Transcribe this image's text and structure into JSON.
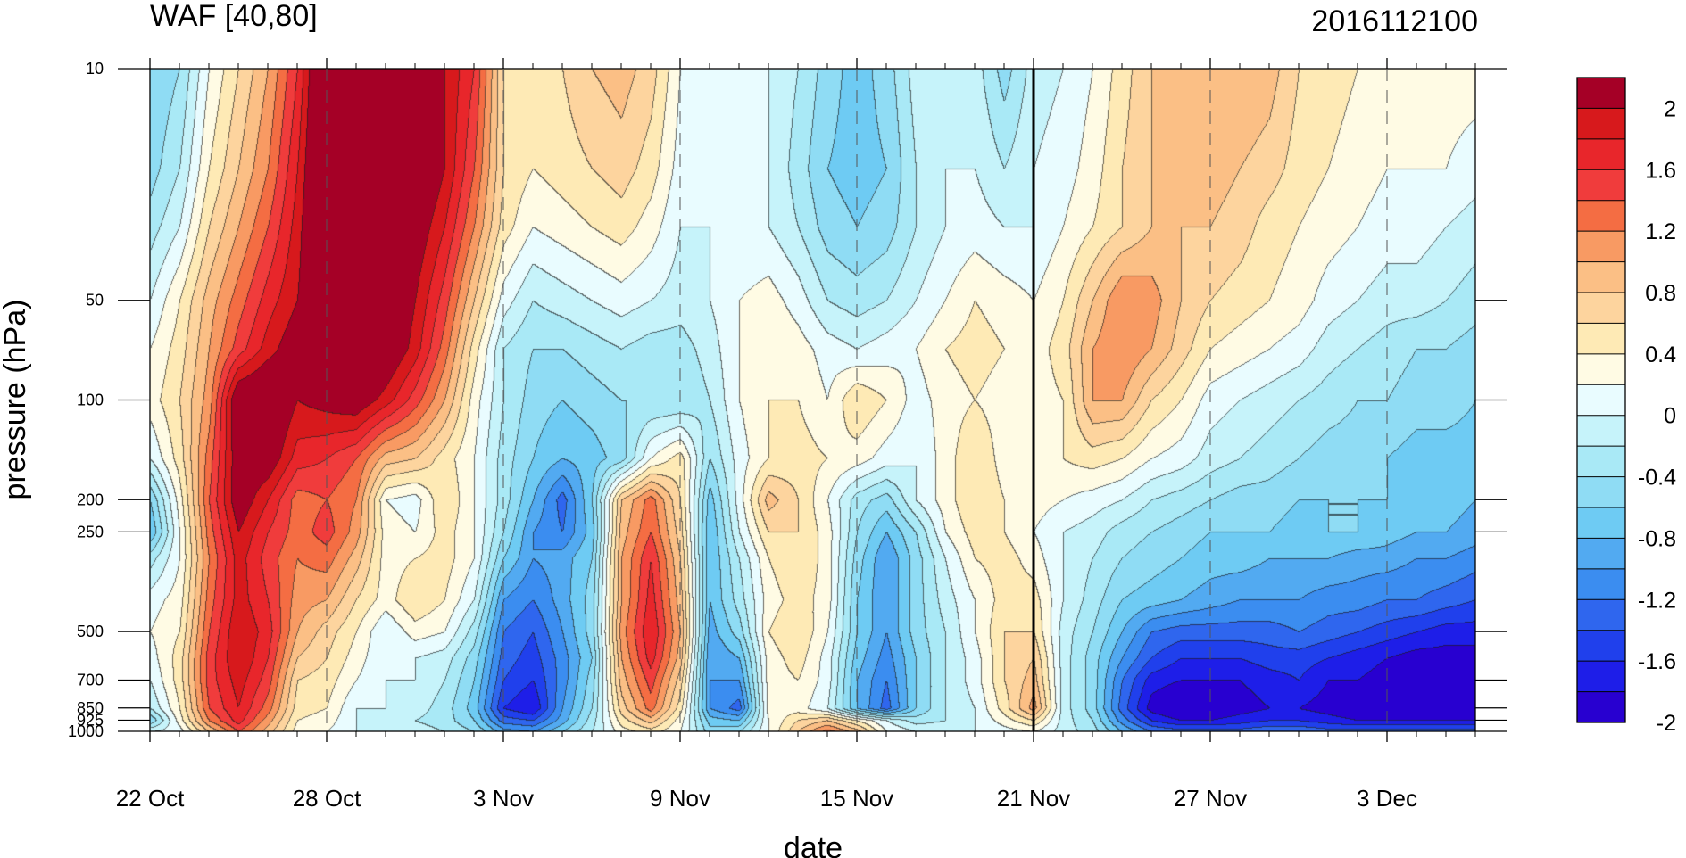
{
  "chart_data": {
    "type": "heatmap",
    "title_left": "WAF [40,80]",
    "title_right": "2016112100",
    "xlabel": "date",
    "ylabel": "pressure (hPa)",
    "x_tick_labels": [
      "22 Oct",
      "28 Oct",
      "3 Nov",
      "9 Nov",
      "15 Nov",
      "21 Nov",
      "27 Nov",
      "3 Dec"
    ],
    "x_ticks_day_offset": [
      0,
      6,
      12,
      18,
      24,
      30,
      36,
      42
    ],
    "x_range_days": [
      0,
      45
    ],
    "y_scale": "log",
    "y_reversed": true,
    "y_tick_labels": [
      "10",
      "50",
      "100",
      "200",
      "250",
      "500",
      "700",
      "850",
      "925",
      "1000"
    ],
    "y_ticks": [
      10,
      50,
      100,
      200,
      250,
      500,
      700,
      850,
      925,
      1000
    ],
    "y_range": [
      10,
      1000
    ],
    "vertical_marker": "21 Nov",
    "colorbar": {
      "labels": [
        "2",
        "1.6",
        "1.2",
        "0.8",
        "0.4",
        "0",
        "-0.4",
        "-0.8",
        "-1.2",
        "-1.6",
        "-2"
      ],
      "levels": [
        2.2,
        2.0,
        1.8,
        1.6,
        1.4,
        1.2,
        1.0,
        0.8,
        0.6,
        0.4,
        0.2,
        0.0,
        -0.2,
        -0.4,
        -0.6,
        -0.8,
        -1.0,
        -1.2,
        -1.4,
        -1.6,
        -1.8,
        -2.0,
        -2.2
      ],
      "colors": [
        "#a50026",
        "#d7191c",
        "#e8262b",
        "#f03c3c",
        "#f46d43",
        "#f89a63",
        "#fbbf85",
        "#fdd49e",
        "#feeab5",
        "#fffbe4",
        "#e9fcff",
        "#c6f3fa",
        "#a9e9f6",
        "#8fdcf4",
        "#6ecbf3",
        "#52aaf1",
        "#3b8df0",
        "#2f66ee",
        "#2040ec",
        "#1e1ee8",
        "#2800d0"
      ]
    },
    "grid": {
      "times": [
        0,
        1,
        2,
        3,
        4,
        5,
        6,
        7,
        8,
        9,
        10,
        11,
        12,
        13,
        14,
        15,
        16,
        17,
        18,
        19,
        20,
        21,
        22,
        23,
        24,
        25,
        26,
        27,
        28,
        29,
        30,
        31,
        32,
        33,
        34,
        35,
        36,
        37,
        38,
        39,
        40,
        41,
        42,
        43,
        44,
        45
      ],
      "levels_hPa": [
        10,
        20,
        30,
        50,
        70,
        100,
        150,
        200,
        250,
        300,
        400,
        500,
        600,
        700,
        850,
        925,
        1000
      ],
      "values_comment_removed": true,
      "values": [
        [
          -0.6,
          -0.4,
          0.2,
          0.6,
          1.0,
          1.6,
          2.6,
          2.8,
          2.6,
          2.4,
          2.0,
          1.6,
          0.6,
          0.4,
          0.6,
          0.8,
          0.9,
          0.7,
          0.2,
          0.0,
          0.0,
          0.0,
          -0.2,
          -0.5,
          -0.7,
          -0.5,
          -0.1,
          0.0,
          -0.1,
          -0.5,
          -0.1,
          0.0,
          0.2,
          0.5,
          0.8,
          0.9,
          1.0,
          1.0,
          0.9,
          0.6,
          0.5,
          0.4,
          0.3,
          0.3,
          0.3,
          0.3
        ],
        [
          -0.5,
          -0.2,
          0.4,
          0.8,
          1.2,
          1.8,
          2.6,
          2.8,
          2.6,
          2.4,
          2.0,
          1.4,
          0.6,
          0.4,
          0.5,
          0.6,
          0.7,
          0.5,
          0.1,
          0.0,
          0.0,
          0.0,
          -0.3,
          -0.6,
          -0.7,
          -0.6,
          -0.2,
          0.0,
          0.0,
          -0.2,
          0.0,
          0.1,
          0.3,
          0.6,
          0.8,
          0.9,
          0.9,
          0.8,
          0.7,
          0.5,
          0.4,
          0.3,
          0.2,
          0.2,
          0.2,
          0.1
        ],
        [
          -0.3,
          0.0,
          0.6,
          1.0,
          1.4,
          1.9,
          2.6,
          2.8,
          2.5,
          2.2,
          1.8,
          1.2,
          0.5,
          0.2,
          0.3,
          0.4,
          0.5,
          0.3,
          0.0,
          0.0,
          0.0,
          0.0,
          -0.2,
          -0.5,
          -0.6,
          -0.5,
          -0.2,
          0.0,
          0.1,
          0.0,
          0.0,
          0.2,
          0.4,
          0.6,
          0.8,
          0.8,
          0.8,
          0.7,
          0.5,
          0.4,
          0.3,
          0.2,
          0.1,
          0.1,
          0.0,
          -0.1
        ],
        [
          0.0,
          0.4,
          0.9,
          1.3,
          1.7,
          2.0,
          2.5,
          2.7,
          2.4,
          2.0,
          1.5,
          0.8,
          0.1,
          -0.2,
          -0.1,
          0.0,
          0.1,
          0.0,
          -0.1,
          0.0,
          0.2,
          0.3,
          0.1,
          -0.2,
          -0.3,
          -0.2,
          0.0,
          0.2,
          0.4,
          0.3,
          0.2,
          0.4,
          0.8,
          1.2,
          1.1,
          0.8,
          0.6,
          0.5,
          0.4,
          0.3,
          0.1,
          0.0,
          -0.1,
          -0.1,
          -0.2,
          -0.3
        ],
        [
          0.2,
          0.5,
          1.0,
          1.5,
          1.9,
          2.2,
          2.4,
          2.6,
          2.3,
          1.9,
          1.3,
          0.5,
          -0.2,
          -0.4,
          -0.4,
          -0.3,
          -0.2,
          -0.3,
          -0.3,
          -0.1,
          0.2,
          0.4,
          0.3,
          0.1,
          0.0,
          0.1,
          0.2,
          0.4,
          0.5,
          0.4,
          0.3,
          0.5,
          1.0,
          1.2,
          1.0,
          0.7,
          0.4,
          0.3,
          0.2,
          0.1,
          -0.1,
          -0.2,
          -0.3,
          -0.4,
          -0.4,
          -0.5
        ],
        [
          0.3,
          0.6,
          1.1,
          2.3,
          2.4,
          2.0,
          2.1,
          2.2,
          1.9,
          1.5,
          1.0,
          0.3,
          -0.2,
          -0.5,
          -0.6,
          -0.5,
          -0.4,
          -0.4,
          -0.4,
          -0.2,
          0.2,
          0.4,
          0.4,
          0.2,
          0.6,
          0.4,
          0.1,
          0.3,
          0.4,
          0.3,
          0.3,
          0.4,
          1.0,
          1.0,
          0.6,
          0.4,
          0.1,
          0.0,
          -0.1,
          -0.2,
          -0.3,
          -0.4,
          -0.4,
          -0.5,
          -0.5,
          -0.6
        ],
        [
          0.0,
          0.5,
          1.3,
          2.2,
          2.2,
          1.7,
          1.6,
          1.4,
          0.9,
          0.8,
          0.5,
          0.2,
          -0.3,
          -0.6,
          -0.8,
          -0.7,
          -0.5,
          0.2,
          0.5,
          -0.4,
          0.1,
          0.4,
          0.5,
          0.4,
          0.3,
          0.1,
          0.0,
          0.3,
          0.6,
          0.3,
          0.4,
          0.4,
          0.5,
          0.4,
          0.2,
          0.1,
          -0.1,
          -0.2,
          -0.3,
          -0.4,
          -0.5,
          -0.5,
          -0.6,
          -0.7,
          -0.7,
          -0.7
        ],
        [
          -0.6,
          0.3,
          1.4,
          2.2,
          1.8,
          1.3,
          1.4,
          1.2,
          0.2,
          0.1,
          0.6,
          0.2,
          -0.3,
          -0.8,
          -1.3,
          -0.6,
          0.8,
          1.3,
          0.6,
          -0.7,
          0.1,
          0.9,
          0.6,
          0.2,
          -0.3,
          -0.5,
          0.0,
          0.3,
          0.6,
          0.4,
          0.3,
          0.2,
          0.1,
          0.0,
          -0.2,
          -0.3,
          -0.4,
          -0.5,
          -0.5,
          -0.6,
          -0.6,
          -0.6,
          -0.6,
          -0.7,
          -0.7,
          -0.8
        ],
        [
          -0.8,
          0.2,
          1.3,
          2.0,
          1.6,
          1.3,
          1.5,
          1.1,
          0.3,
          0.2,
          0.5,
          0.2,
          -0.4,
          -1.0,
          -1.2,
          -0.7,
          0.9,
          1.4,
          0.7,
          -0.8,
          0.0,
          0.6,
          0.6,
          0.3,
          -0.4,
          -0.8,
          -0.4,
          0.2,
          0.5,
          0.4,
          0.2,
          0.0,
          -0.1,
          -0.3,
          -0.4,
          -0.5,
          -0.6,
          -0.6,
          -0.6,
          -0.7,
          -0.6,
          -0.6,
          -0.7,
          -0.8,
          -0.8,
          -0.9
        ],
        [
          -0.3,
          0.2,
          1.2,
          1.9,
          1.5,
          1.2,
          1.3,
          0.9,
          0.3,
          0.4,
          0.5,
          0.2,
          -0.6,
          -1.0,
          -0.9,
          -0.6,
          1.0,
          1.6,
          0.8,
          -0.8,
          -0.2,
          0.4,
          0.6,
          0.3,
          -0.5,
          -1.0,
          -0.5,
          0.0,
          0.4,
          0.5,
          0.3,
          0.0,
          -0.2,
          -0.4,
          -0.5,
          -0.6,
          -0.7,
          -0.7,
          -0.8,
          -0.8,
          -0.8,
          -0.9,
          -0.9,
          -1.0,
          -1.0,
          -1.1
        ],
        [
          0.1,
          0.3,
          1.3,
          1.9,
          1.6,
          1.1,
          1.0,
          0.6,
          0.3,
          0.6,
          0.4,
          0.0,
          -1.0,
          -1.2,
          -0.9,
          -0.5,
          1.0,
          1.7,
          0.9,
          -0.8,
          -0.3,
          0.3,
          0.5,
          0.3,
          -0.6,
          -1.0,
          -0.5,
          -0.1,
          0.2,
          0.5,
          0.5,
          0.0,
          -0.3,
          -0.6,
          -0.7,
          -0.8,
          -0.9,
          -1.0,
          -1.0,
          -1.0,
          -1.1,
          -1.1,
          -1.2,
          -1.2,
          -1.3,
          -1.4
        ],
        [
          0.2,
          0.4,
          1.4,
          2.0,
          1.7,
          1.0,
          0.7,
          0.4,
          0.0,
          0.3,
          0.2,
          -0.3,
          -1.2,
          -1.4,
          -1.0,
          -0.5,
          1.1,
          1.8,
          1.0,
          -0.9,
          -0.5,
          0.4,
          0.6,
          0.2,
          -0.6,
          -1.0,
          -0.5,
          -0.2,
          0.2,
          0.6,
          0.6,
          -0.1,
          -0.4,
          -0.8,
          -1.2,
          -1.3,
          -1.3,
          -1.3,
          -1.3,
          -1.2,
          -1.3,
          -1.4,
          -1.5,
          -1.6,
          -1.7,
          -1.7
        ],
        [
          0.1,
          0.5,
          1.5,
          2.0,
          1.6,
          0.8,
          0.6,
          0.3,
          0.0,
          0.0,
          -0.1,
          -0.5,
          -1.3,
          -1.5,
          -1.1,
          -0.6,
          1.0,
          1.7,
          0.9,
          -1.0,
          -0.8,
          0.3,
          0.5,
          0.1,
          -0.7,
          -1.1,
          -0.6,
          -0.2,
          0.1,
          0.6,
          0.8,
          -0.1,
          -0.5,
          -1.0,
          -1.4,
          -1.6,
          -1.6,
          -1.6,
          -1.5,
          -1.5,
          -1.6,
          -1.7,
          -1.8,
          -1.9,
          -1.9,
          -1.9
        ],
        [
          0.0,
          0.5,
          1.5,
          1.9,
          1.5,
          0.6,
          0.5,
          0.2,
          0.0,
          0.0,
          -0.2,
          -0.6,
          -1.4,
          -1.6,
          -1.1,
          -0.5,
          0.9,
          1.5,
          0.7,
          -1.0,
          -1.0,
          0.3,
          0.4,
          0.1,
          -0.8,
          -1.2,
          -0.6,
          -0.2,
          0.1,
          0.6,
          0.9,
          -0.1,
          -0.5,
          -1.2,
          -1.7,
          -1.8,
          -1.8,
          -1.8,
          -1.7,
          -1.6,
          -1.8,
          -1.8,
          -1.9,
          -2.0,
          -2.0,
          -2.0
        ],
        [
          -0.2,
          0.4,
          1.4,
          1.8,
          1.3,
          0.5,
          0.4,
          0.0,
          0.0,
          -0.1,
          -0.3,
          -0.7,
          -1.6,
          -1.8,
          -1.0,
          -0.4,
          0.7,
          1.3,
          0.5,
          -1.0,
          -1.3,
          0.3,
          0.3,
          0.0,
          -0.8,
          -1.3,
          -0.6,
          -0.2,
          0.0,
          0.5,
          1.1,
          -0.1,
          -0.5,
          -1.3,
          -1.9,
          -2.1,
          -2.0,
          -1.9,
          -1.8,
          -1.8,
          -1.9,
          -2.0,
          -2.1,
          -2.1,
          -2.1,
          -2.1
        ],
        [
          -0.6,
          0.3,
          1.2,
          1.7,
          1.1,
          0.4,
          0.3,
          0.0,
          -0.1,
          -0.2,
          -0.3,
          -0.6,
          -1.3,
          -1.4,
          -0.9,
          -0.3,
          0.5,
          0.9,
          0.3,
          -0.7,
          -0.8,
          0.2,
          0.6,
          0.8,
          0.4,
          0.0,
          -0.3,
          -0.2,
          0.0,
          0.3,
          0.6,
          -0.1,
          -0.4,
          -1.1,
          -1.6,
          -1.8,
          -1.8,
          -1.7,
          -1.6,
          -1.6,
          -1.7,
          -1.8,
          -1.8,
          -1.8,
          -1.8,
          -1.8
        ],
        [
          0.0,
          0.1,
          0.8,
          1.4,
          0.9,
          0.3,
          0.2,
          0.0,
          -0.1,
          -0.1,
          -0.2,
          -0.4,
          -0.9,
          -1.0,
          -0.6,
          -0.2,
          0.3,
          0.5,
          0.2,
          -0.5,
          -0.4,
          0.2,
          0.8,
          1.3,
          0.9,
          0.2,
          0.0,
          0.0,
          0.0,
          0.1,
          0.2,
          -0.1,
          -0.3,
          -0.8,
          -1.2,
          -1.3,
          -1.3,
          -1.3,
          -1.2,
          -1.2,
          -1.3,
          -1.3,
          -1.3,
          -1.3,
          -1.3,
          -1.3
        ]
      ]
    }
  }
}
